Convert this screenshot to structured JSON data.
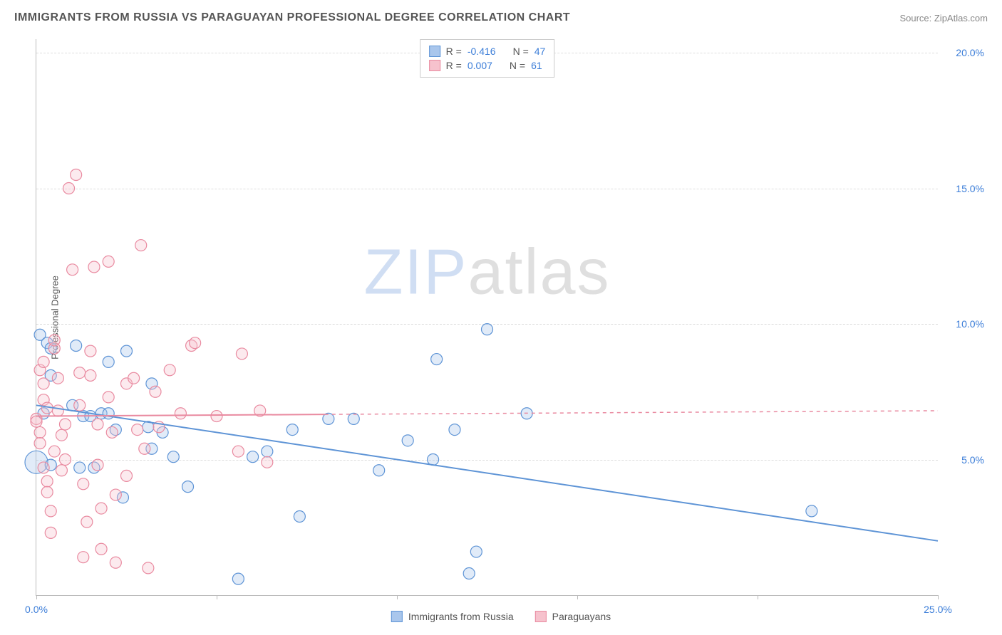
{
  "header": {
    "title": "IMMIGRANTS FROM RUSSIA VS PARAGUAYAN PROFESSIONAL DEGREE CORRELATION CHART",
    "source_prefix": "Source: ",
    "source_name": "ZipAtlas.com"
  },
  "chart": {
    "type": "scatter",
    "y_axis_label": "Professional Degree",
    "xlim": [
      0,
      25
    ],
    "ylim": [
      0,
      20.5
    ],
    "x_ticks": [
      0,
      5,
      10,
      15,
      20,
      25
    ],
    "x_tick_labels": [
      "0.0%",
      "",
      "",
      "",
      "",
      "25.0%"
    ],
    "y_ticks": [
      5,
      10,
      15,
      20
    ],
    "y_tick_labels": [
      "5.0%",
      "10.0%",
      "15.0%",
      "20.0%"
    ],
    "background_color": "#ffffff",
    "grid_color": "#dddddd",
    "grid_dash": "4,4",
    "axis_color": "#bbbbbb",
    "marker_radius": 8,
    "marker_stroke_width": 1.2,
    "marker_fill_opacity": 0.35,
    "series": [
      {
        "id": "russia",
        "name": "Immigrants from Russia",
        "color_fill": "#a9c6ec",
        "color_stroke": "#5e94d6",
        "R": "-0.416",
        "N": "47",
        "trend": {
          "y_at_x0": 7.0,
          "y_at_xmax": 2.0,
          "solid_to_x": 25,
          "extend_dashed": false
        },
        "points": [
          [
            0.0,
            4.9,
            16
          ],
          [
            0.1,
            9.6
          ],
          [
            0.3,
            9.3
          ],
          [
            0.4,
            9.1
          ],
          [
            1.1,
            9.2
          ],
          [
            0.4,
            8.1
          ],
          [
            2.5,
            9.0
          ],
          [
            3.2,
            7.8
          ],
          [
            2.0,
            8.6
          ],
          [
            0.2,
            6.7
          ],
          [
            1.0,
            7.0
          ],
          [
            1.3,
            6.6
          ],
          [
            1.5,
            6.6
          ],
          [
            1.8,
            6.7
          ],
          [
            2.0,
            6.7
          ],
          [
            2.2,
            6.1
          ],
          [
            3.1,
            6.2
          ],
          [
            3.5,
            6.0
          ],
          [
            0.4,
            4.8
          ],
          [
            1.2,
            4.7
          ],
          [
            1.6,
            4.7
          ],
          [
            2.4,
            3.6
          ],
          [
            3.2,
            5.4
          ],
          [
            3.8,
            5.1
          ],
          [
            4.2,
            4.0
          ],
          [
            6.4,
            5.3
          ],
          [
            6.0,
            5.1
          ],
          [
            7.1,
            6.1
          ],
          [
            7.3,
            2.9
          ],
          [
            8.1,
            6.5
          ],
          [
            8.8,
            6.5
          ],
          [
            9.5,
            4.6
          ],
          [
            10.3,
            5.7
          ],
          [
            11.0,
            5.0
          ],
          [
            11.6,
            6.1
          ],
          [
            11.1,
            8.7
          ],
          [
            12.5,
            9.8
          ],
          [
            12.0,
            0.8
          ],
          [
            12.2,
            1.6
          ],
          [
            13.6,
            6.7
          ],
          [
            5.6,
            0.6
          ],
          [
            21.5,
            3.1
          ]
        ]
      },
      {
        "id": "paraguay",
        "name": "Paraguayans",
        "color_fill": "#f6c2cd",
        "color_stroke": "#e98aa0",
        "R": "0.007",
        "N": "61",
        "trend": {
          "y_at_x0": 6.6,
          "y_at_xmax": 6.8,
          "solid_to_x": 8.0,
          "extend_dashed": true
        },
        "points": [
          [
            0.0,
            6.5
          ],
          [
            0.0,
            6.4
          ],
          [
            0.1,
            6.0
          ],
          [
            0.1,
            5.6
          ],
          [
            0.1,
            8.3
          ],
          [
            0.2,
            8.6
          ],
          [
            0.2,
            7.8
          ],
          [
            0.2,
            7.2
          ],
          [
            0.2,
            4.7
          ],
          [
            0.3,
            4.2
          ],
          [
            0.3,
            3.8
          ],
          [
            0.4,
            2.3
          ],
          [
            0.4,
            3.1
          ],
          [
            0.5,
            9.1
          ],
          [
            0.5,
            9.4
          ],
          [
            0.6,
            8.0
          ],
          [
            0.6,
            6.8
          ],
          [
            0.7,
            5.9
          ],
          [
            0.7,
            4.6
          ],
          [
            0.8,
            6.3
          ],
          [
            0.8,
            5.0
          ],
          [
            1.0,
            12.0
          ],
          [
            1.1,
            15.5
          ],
          [
            1.2,
            8.2
          ],
          [
            1.2,
            7.0
          ],
          [
            1.3,
            4.1
          ],
          [
            1.3,
            1.4
          ],
          [
            1.5,
            9.0
          ],
          [
            1.5,
            8.1
          ],
          [
            1.6,
            12.1
          ],
          [
            1.7,
            6.3
          ],
          [
            1.7,
            4.8
          ],
          [
            1.8,
            3.2
          ],
          [
            1.8,
            1.7
          ],
          [
            2.0,
            12.3
          ],
          [
            2.0,
            7.3
          ],
          [
            2.1,
            6.0
          ],
          [
            2.2,
            3.7
          ],
          [
            2.2,
            1.2
          ],
          [
            2.5,
            7.8
          ],
          [
            2.5,
            4.4
          ],
          [
            2.7,
            8.0
          ],
          [
            2.8,
            6.1
          ],
          [
            2.9,
            12.9
          ],
          [
            3.0,
            5.4
          ],
          [
            3.1,
            1.0
          ],
          [
            3.3,
            7.5
          ],
          [
            3.4,
            6.2
          ],
          [
            3.7,
            8.3
          ],
          [
            4.0,
            6.7
          ],
          [
            4.3,
            9.2
          ],
          [
            4.4,
            9.3
          ],
          [
            5.0,
            6.6
          ],
          [
            5.7,
            8.9
          ],
          [
            5.6,
            5.3
          ],
          [
            6.2,
            6.8
          ],
          [
            6.4,
            4.9
          ],
          [
            0.9,
            15.0
          ],
          [
            0.5,
            5.3
          ],
          [
            0.3,
            6.9
          ],
          [
            1.4,
            2.7
          ]
        ]
      }
    ],
    "watermark": {
      "part1": "ZIP",
      "part2": "atlas"
    },
    "legend_top_labels": {
      "R": "R =",
      "N": "N ="
    },
    "legend_bottom": [
      {
        "swatch_fill": "#a9c6ec",
        "swatch_stroke": "#5e94d6",
        "label": "Immigrants from Russia"
      },
      {
        "swatch_fill": "#f6c2cd",
        "swatch_stroke": "#e98aa0",
        "label": "Paraguayans"
      }
    ]
  }
}
